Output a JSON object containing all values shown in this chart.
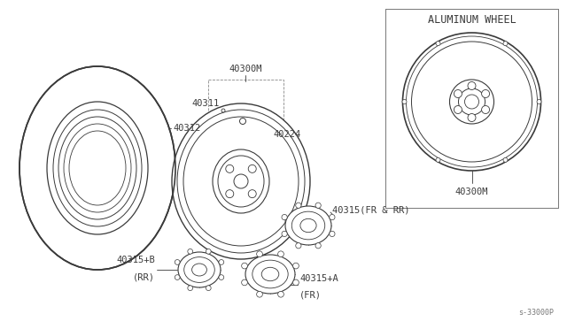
{
  "bg_color": "#ffffff",
  "line_color": "#3a3a3a",
  "label_40300M_top": "40300M",
  "label_40312": "40312",
  "label_40311": "40311",
  "label_40224": "40224",
  "label_40315_FR_RR": "40315(FR & RR)",
  "label_40315B_line1": "40315+B",
  "label_40315B_line2": "(RR)",
  "label_40315A_line1": "40315+A",
  "label_40315A_line2": "(FR)",
  "label_40300M_bot": "40300M",
  "label_ref": "s-33000P",
  "title_text": "ALUMINUM WHEEL",
  "font_size": 7.5,
  "font_size_title": 8.5
}
